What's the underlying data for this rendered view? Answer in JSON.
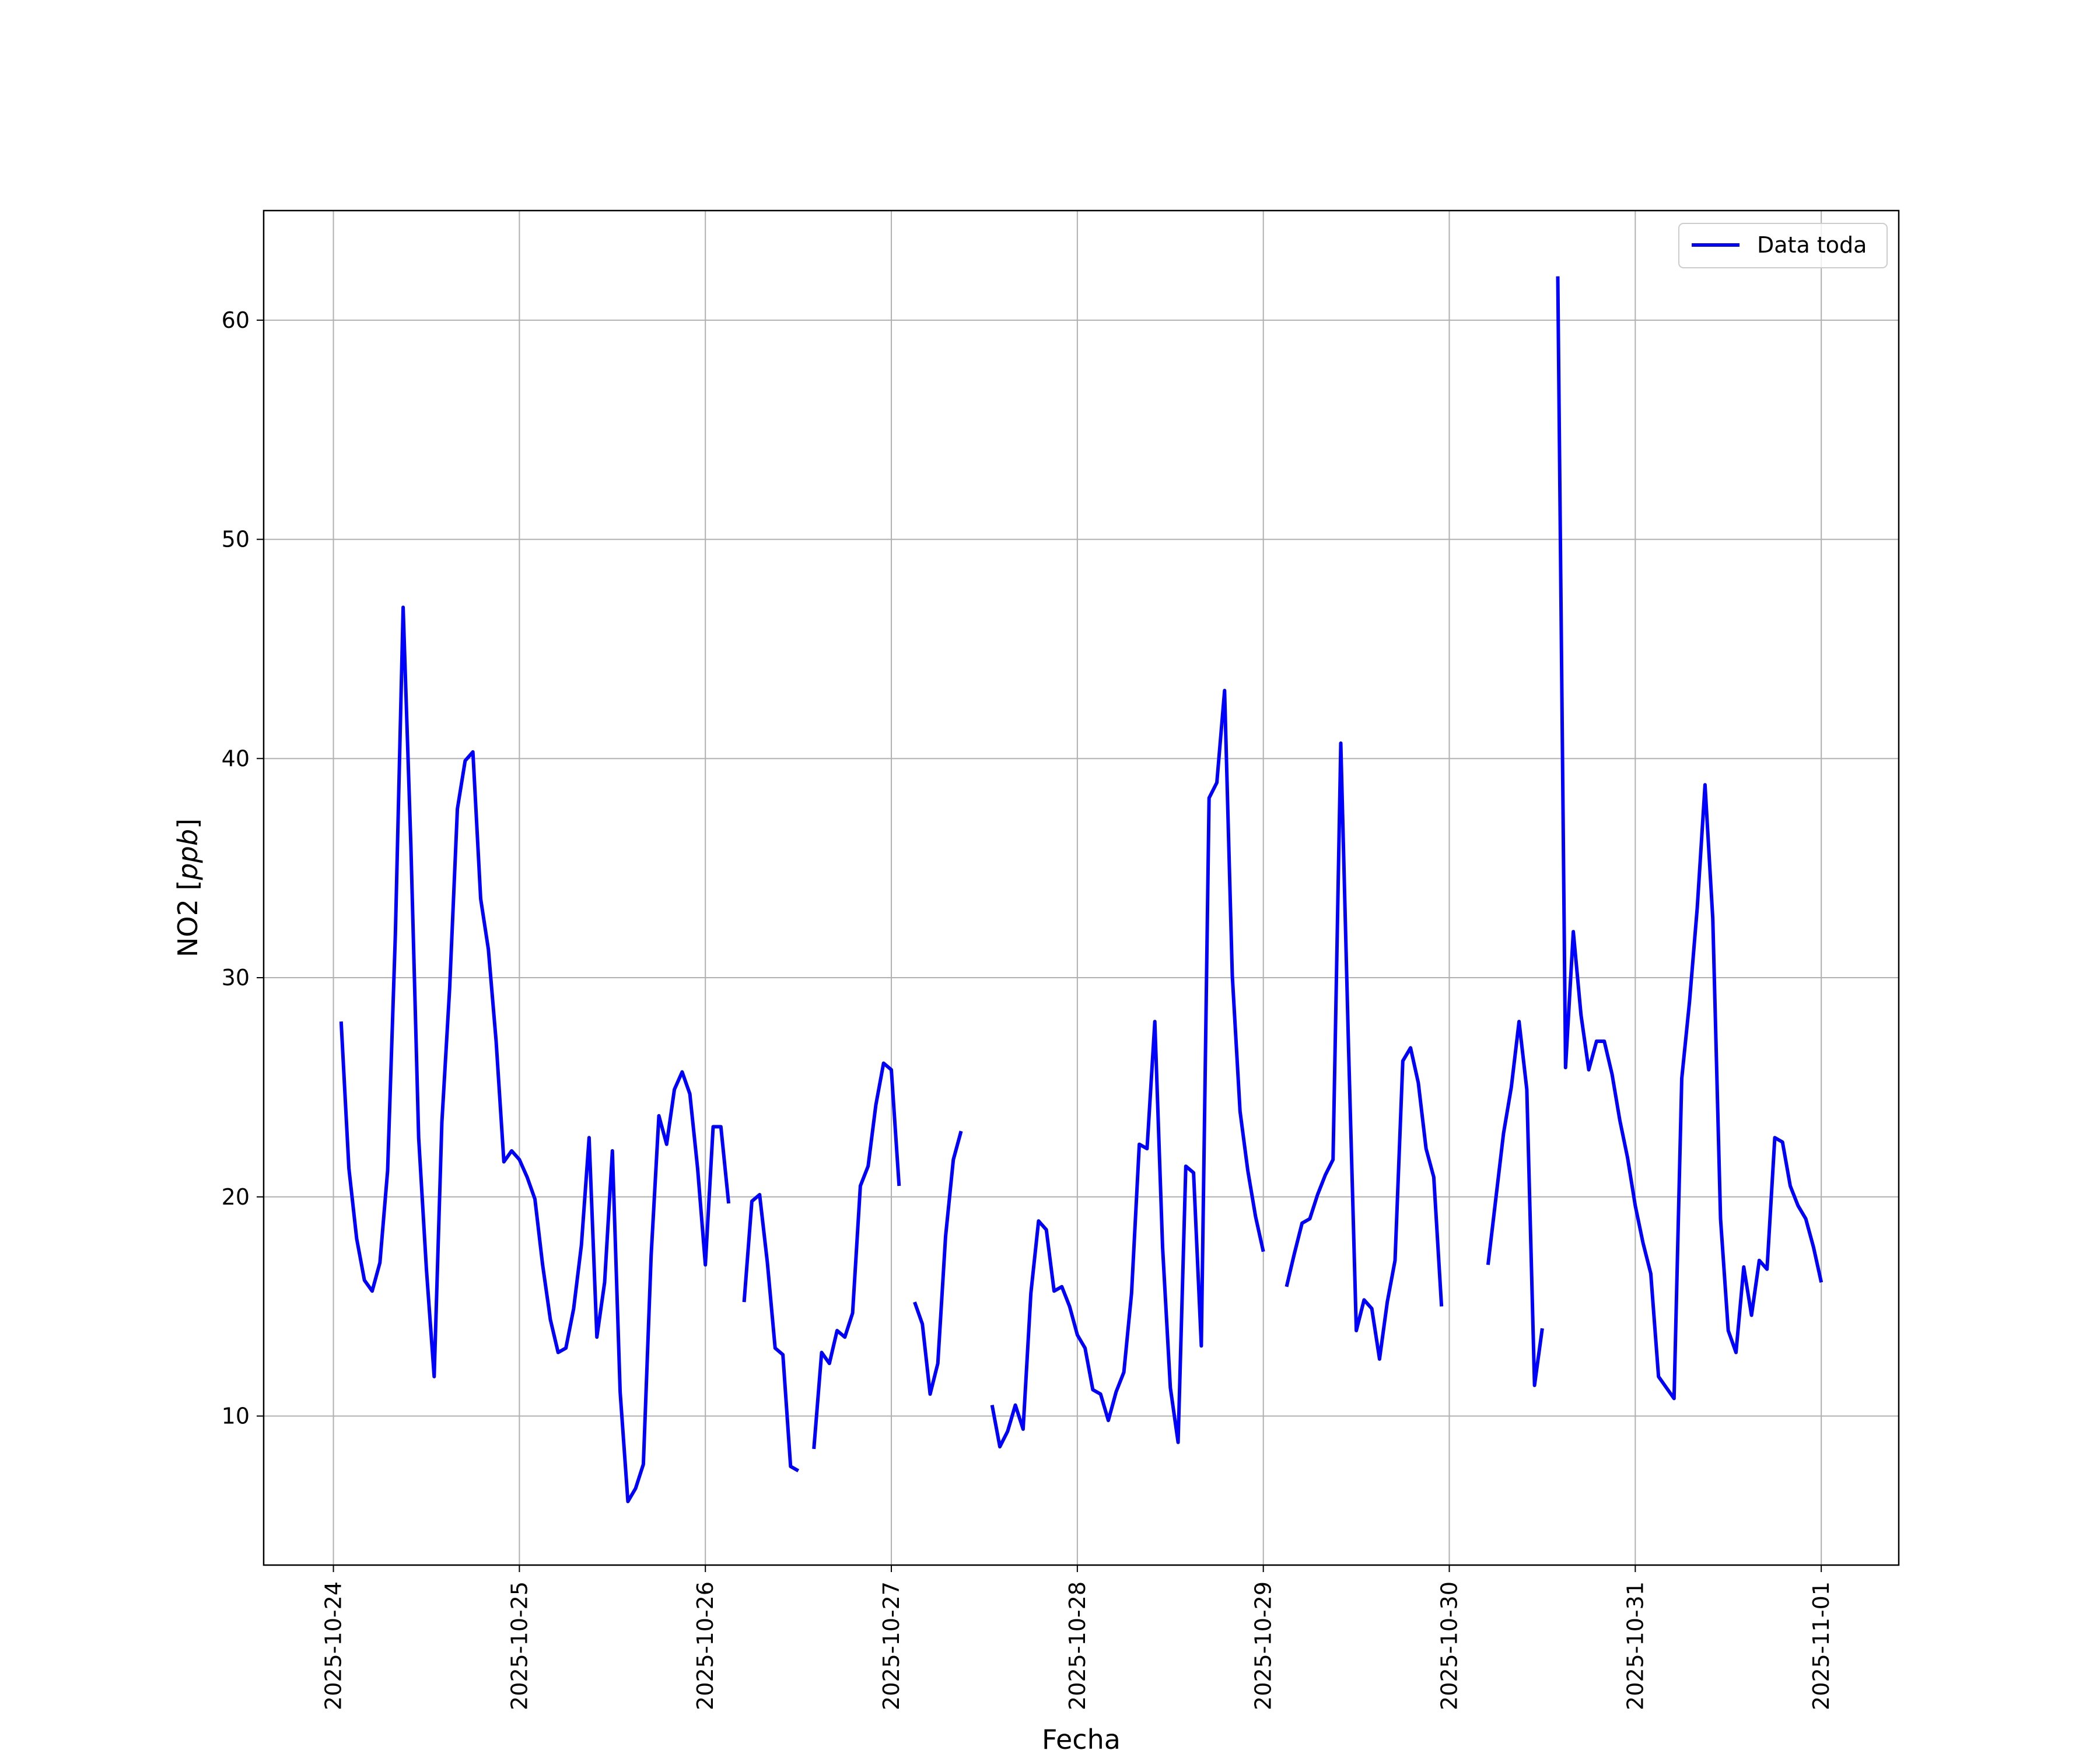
{
  "chart_data": {
    "type": "line",
    "xlabel": "Fecha",
    "ylabel": "NO2 [ppb]",
    "ylabel_parts": {
      "prefix": "NO2 [",
      "unit": "ppb",
      "suffix": "]"
    },
    "xlim": [
      "2025-10-23T15:00",
      "2025-11-01T10:00"
    ],
    "ylim": [
      3.2,
      65.0
    ],
    "x_ticks": [
      "2025-10-24",
      "2025-10-25",
      "2025-10-26",
      "2025-10-27",
      "2025-10-28",
      "2025-10-29",
      "2025-10-30",
      "2025-10-31",
      "2025-11-01"
    ],
    "y_ticks": [
      10,
      20,
      30,
      40,
      50,
      60
    ],
    "grid": true,
    "legend": {
      "position": "top-right",
      "entries": [
        "Data toda"
      ]
    },
    "series": [
      {
        "name": "Data toda",
        "color": "#0000ff",
        "segments": [
          [
            [
              "2025-10-24T01:00",
              28.0
            ],
            [
              "2025-10-24T02:00",
              21.3
            ],
            [
              "2025-10-24T03:00",
              18.1
            ],
            [
              "2025-10-24T04:00",
              16.2
            ],
            [
              "2025-10-24T05:00",
              15.7
            ],
            [
              "2025-10-24T06:00",
              17.0
            ],
            [
              "2025-10-24T07:00",
              21.2
            ],
            [
              "2025-10-24T08:00",
              32.0
            ],
            [
              "2025-10-24T09:00",
              46.9
            ],
            [
              "2025-10-24T10:00",
              36.0
            ],
            [
              "2025-10-24T11:00",
              22.7
            ],
            [
              "2025-10-24T12:00",
              16.7
            ],
            [
              "2025-10-24T13:00",
              11.8
            ],
            [
              "2025-10-24T14:00",
              23.4
            ],
            [
              "2025-10-24T15:00",
              29.5
            ],
            [
              "2025-10-24T16:00",
              37.7
            ],
            [
              "2025-10-24T17:00",
              39.9
            ],
            [
              "2025-10-24T18:00",
              40.3
            ],
            [
              "2025-10-24T19:00",
              33.6
            ],
            [
              "2025-10-24T20:00",
              31.3
            ],
            [
              "2025-10-24T21:00",
              27.1
            ],
            [
              "2025-10-24T22:00",
              21.6
            ],
            [
              "2025-10-24T23:00",
              22.1
            ],
            [
              "2025-10-25T00:00",
              21.7
            ],
            [
              "2025-10-25T01:00",
              20.9
            ],
            [
              "2025-10-25T02:00",
              19.9
            ],
            [
              "2025-10-25T03:00",
              16.9
            ],
            [
              "2025-10-25T04:00",
              14.4
            ],
            [
              "2025-10-25T05:00",
              12.9
            ],
            [
              "2025-10-25T06:00",
              13.1
            ],
            [
              "2025-10-25T07:00",
              14.9
            ],
            [
              "2025-10-25T08:00",
              17.8
            ],
            [
              "2025-10-25T09:00",
              22.7
            ],
            [
              "2025-10-25T10:00",
              13.6
            ],
            [
              "2025-10-25T11:00",
              16.1
            ],
            [
              "2025-10-25T12:00",
              22.1
            ],
            [
              "2025-10-25T13:00",
              11.1
            ],
            [
              "2025-10-25T14:00",
              6.1
            ],
            [
              "2025-10-25T15:00",
              6.7
            ],
            [
              "2025-10-25T16:00",
              7.8
            ],
            [
              "2025-10-25T17:00",
              17.3
            ],
            [
              "2025-10-25T18:00",
              23.7
            ],
            [
              "2025-10-25T19:00",
              22.4
            ],
            [
              "2025-10-25T20:00",
              24.9
            ],
            [
              "2025-10-25T21:00",
              25.7
            ],
            [
              "2025-10-25T22:00",
              24.7
            ],
            [
              "2025-10-25T23:00",
              21.3
            ],
            [
              "2025-10-26T00:00",
              16.9
            ],
            [
              "2025-10-26T01:00",
              23.2
            ],
            [
              "2025-10-26T02:00",
              23.2
            ],
            [
              "2025-10-26T03:00",
              19.7
            ]
          ],
          [
            [
              "2025-10-26T05:00",
              15.2
            ],
            [
              "2025-10-26T06:00",
              19.8
            ],
            [
              "2025-10-26T07:00",
              20.1
            ],
            [
              "2025-10-26T08:00",
              17.0
            ],
            [
              "2025-10-26T09:00",
              13.1
            ],
            [
              "2025-10-26T10:00",
              12.8
            ],
            [
              "2025-10-26T11:00",
              7.7
            ],
            [
              "2025-10-26T12:00",
              7.5
            ]
          ],
          [
            [
              "2025-10-26T14:00",
              8.5
            ],
            [
              "2025-10-26T15:00",
              12.9
            ],
            [
              "2025-10-26T16:00",
              12.4
            ],
            [
              "2025-10-26T17:00",
              13.9
            ],
            [
              "2025-10-26T18:00",
              13.6
            ],
            [
              "2025-10-26T19:00",
              14.7
            ],
            [
              "2025-10-26T20:00",
              20.5
            ],
            [
              "2025-10-26T21:00",
              21.4
            ],
            [
              "2025-10-26T22:00",
              24.2
            ],
            [
              "2025-10-26T23:00",
              26.1
            ],
            [
              "2025-10-27T00:00",
              25.8
            ],
            [
              "2025-10-27T01:00",
              20.5
            ]
          ],
          [
            [
              "2025-10-27T03:00",
              15.2
            ],
            [
              "2025-10-27T04:00",
              14.2
            ],
            [
              "2025-10-27T05:00",
              11.0
            ],
            [
              "2025-10-27T06:00",
              12.4
            ],
            [
              "2025-10-27T07:00",
              18.2
            ],
            [
              "2025-10-27T08:00",
              21.7
            ],
            [
              "2025-10-27T09:00",
              23.0
            ]
          ],
          [
            [
              "2025-10-27T13:00",
              10.5
            ],
            [
              "2025-10-27T14:00",
              8.6
            ],
            [
              "2025-10-27T15:00",
              9.3
            ],
            [
              "2025-10-27T16:00",
              10.5
            ],
            [
              "2025-10-27T17:00",
              9.4
            ],
            [
              "2025-10-27T18:00",
              15.6
            ],
            [
              "2025-10-27T19:00",
              18.9
            ],
            [
              "2025-10-27T20:00",
              18.5
            ],
            [
              "2025-10-27T21:00",
              15.7
            ],
            [
              "2025-10-27T22:00",
              15.9
            ],
            [
              "2025-10-27T23:00",
              15.0
            ],
            [
              "2025-10-28T00:00",
              13.7
            ],
            [
              "2025-10-28T01:00",
              13.1
            ],
            [
              "2025-10-28T02:00",
              11.2
            ],
            [
              "2025-10-28T03:00",
              11.0
            ],
            [
              "2025-10-28T04:00",
              9.8
            ],
            [
              "2025-10-28T05:00",
              11.1
            ],
            [
              "2025-10-28T06:00",
              12.0
            ],
            [
              "2025-10-28T07:00",
              15.6
            ],
            [
              "2025-10-28T08:00",
              22.4
            ],
            [
              "2025-10-28T09:00",
              22.2
            ],
            [
              "2025-10-28T10:00",
              28.0
            ],
            [
              "2025-10-28T11:00",
              17.7
            ],
            [
              "2025-10-28T12:00",
              11.3
            ],
            [
              "2025-10-28T13:00",
              8.8
            ],
            [
              "2025-10-28T14:00",
              21.4
            ],
            [
              "2025-10-28T15:00",
              21.1
            ],
            [
              "2025-10-28T16:00",
              13.2
            ],
            [
              "2025-10-28T17:00",
              38.2
            ],
            [
              "2025-10-28T18:00",
              38.9
            ],
            [
              "2025-10-28T19:00",
              43.1
            ],
            [
              "2025-10-28T20:00",
              30.1
            ],
            [
              "2025-10-28T21:00",
              23.9
            ],
            [
              "2025-10-28T22:00",
              21.2
            ],
            [
              "2025-10-28T23:00",
              19.1
            ],
            [
              "2025-10-29T00:00",
              17.5
            ]
          ],
          [
            [
              "2025-10-29T03:00",
              15.9
            ],
            [
              "2025-10-29T04:00",
              17.4
            ],
            [
              "2025-10-29T05:00",
              18.8
            ],
            [
              "2025-10-29T06:00",
              19.0
            ],
            [
              "2025-10-29T07:00",
              20.1
            ],
            [
              "2025-10-29T08:00",
              21.0
            ],
            [
              "2025-10-29T09:00",
              21.7
            ],
            [
              "2025-10-29T10:00",
              40.7
            ],
            [
              "2025-10-29T11:00",
              26.8
            ],
            [
              "2025-10-29T12:00",
              13.9
            ],
            [
              "2025-10-29T13:00",
              15.3
            ],
            [
              "2025-10-29T14:00",
              14.9
            ],
            [
              "2025-10-29T15:00",
              12.6
            ],
            [
              "2025-10-29T16:00",
              15.2
            ],
            [
              "2025-10-29T17:00",
              17.1
            ],
            [
              "2025-10-29T18:00",
              26.2
            ],
            [
              "2025-10-29T19:00",
              26.8
            ],
            [
              "2025-10-29T20:00",
              25.2
            ],
            [
              "2025-10-29T21:00",
              22.2
            ],
            [
              "2025-10-29T22:00",
              20.9
            ],
            [
              "2025-10-29T23:00",
              15.0
            ]
          ],
          [
            [
              "2025-10-30T05:00",
              16.9
            ],
            [
              "2025-10-30T06:00",
              19.9
            ],
            [
              "2025-10-30T07:00",
              22.9
            ],
            [
              "2025-10-30T08:00",
              25.0
            ],
            [
              "2025-10-30T09:00",
              28.0
            ],
            [
              "2025-10-30T10:00",
              24.9
            ],
            [
              "2025-10-30T11:00",
              11.4
            ],
            [
              "2025-10-30T12:00",
              14.0
            ]
          ],
          [
            [
              "2025-10-30T14:00",
              62.0
            ],
            [
              "2025-10-30T15:00",
              25.9
            ],
            [
              "2025-10-30T16:00",
              32.1
            ],
            [
              "2025-10-30T17:00",
              28.3
            ],
            [
              "2025-10-30T18:00",
              25.8
            ],
            [
              "2025-10-30T19:00",
              27.1
            ],
            [
              "2025-10-30T20:00",
              27.1
            ],
            [
              "2025-10-30T21:00",
              25.6
            ],
            [
              "2025-10-30T22:00",
              23.5
            ],
            [
              "2025-10-30T23:00",
              21.8
            ],
            [
              "2025-10-31T00:00",
              19.6
            ],
            [
              "2025-10-31T01:00",
              17.9
            ],
            [
              "2025-10-31T02:00",
              16.5
            ],
            [
              "2025-10-31T03:00",
              11.8
            ],
            [
              "2025-10-31T04:00",
              11.3
            ],
            [
              "2025-10-31T05:00",
              10.8
            ],
            [
              "2025-10-31T06:00",
              25.4
            ],
            [
              "2025-10-31T07:00",
              28.9
            ],
            [
              "2025-10-31T08:00",
              33.2
            ],
            [
              "2025-10-31T09:00",
              38.8
            ],
            [
              "2025-10-31T10:00",
              32.7
            ],
            [
              "2025-10-31T11:00",
              19.0
            ],
            [
              "2025-10-31T12:00",
              13.9
            ],
            [
              "2025-10-31T13:00",
              12.9
            ],
            [
              "2025-10-31T14:00",
              16.8
            ],
            [
              "2025-10-31T15:00",
              14.6
            ],
            [
              "2025-10-31T16:00",
              17.1
            ],
            [
              "2025-10-31T17:00",
              16.7
            ],
            [
              "2025-10-31T18:00",
              22.7
            ],
            [
              "2025-10-31T19:00",
              22.5
            ],
            [
              "2025-10-31T20:00",
              20.5
            ],
            [
              "2025-10-31T21:00",
              19.6
            ],
            [
              "2025-10-31T22:00",
              19.0
            ],
            [
              "2025-10-31T23:00",
              17.7
            ],
            [
              "2025-11-01T00:00",
              16.1
            ]
          ]
        ]
      }
    ]
  }
}
